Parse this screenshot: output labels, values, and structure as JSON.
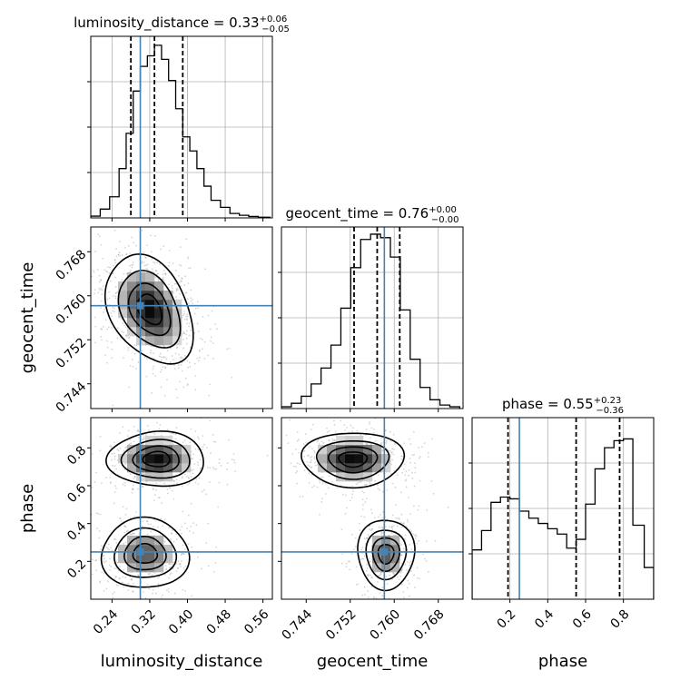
{
  "chart_data": {
    "type": "corner",
    "parameters": [
      {
        "name": "luminosity_distance",
        "label": "luminosity_distance",
        "title": {
          "text": "luminosity_distance = 0.33",
          "plus": "+0.06",
          "minus": "−0.05"
        },
        "range": [
          0.195,
          0.58
        ],
        "ticks": [
          0.24,
          0.32,
          0.4,
          0.48,
          0.56
        ],
        "tick_labels": [
          "0.24",
          "0.32",
          "0.40",
          "0.48",
          "0.56"
        ],
        "truth": 0.3,
        "quantiles": [
          0.28,
          0.33,
          0.39
        ],
        "hist_edges": [
          0.195,
          0.215,
          0.235,
          0.255,
          0.27,
          0.285,
          0.3,
          0.315,
          0.33,
          0.345,
          0.36,
          0.375,
          0.39,
          0.405,
          0.42,
          0.435,
          0.45,
          0.47,
          0.49,
          0.51,
          0.53,
          0.55,
          0.575
        ],
        "hist_values": [
          0.01,
          0.05,
          0.12,
          0.28,
          0.48,
          0.72,
          0.86,
          0.92,
          0.98,
          0.9,
          0.78,
          0.62,
          0.46,
          0.38,
          0.28,
          0.18,
          0.1,
          0.06,
          0.025,
          0.015,
          0.008,
          0.004
        ],
        "hist_ylim": [
          0,
          1.0
        ]
      },
      {
        "name": "geocent_time",
        "label": "geocent_time",
        "title": {
          "text": "geocent_time = 0.76",
          "plus": "+0.00",
          "minus": "−0.00"
        },
        "range": [
          0.7395,
          0.7725
        ],
        "ticks": [
          0.744,
          0.752,
          0.76,
          0.768
        ],
        "tick_labels": [
          "0.744",
          "0.752",
          "0.760",
          "0.768"
        ],
        "truth": 0.7582,
        "quantiles": [
          0.7527,
          0.7569,
          0.761
        ],
        "hist_edges": [
          0.7395,
          0.7413,
          0.7431,
          0.7449,
          0.7467,
          0.7485,
          0.7503,
          0.7521,
          0.7539,
          0.7557,
          0.7575,
          0.7593,
          0.7611,
          0.7629,
          0.7647,
          0.7665,
          0.7683,
          0.7701,
          0.7719
        ],
        "hist_values": [
          0.01,
          0.03,
          0.07,
          0.14,
          0.23,
          0.36,
          0.57,
          0.8,
          0.96,
          0.99,
          0.97,
          0.86,
          0.56,
          0.28,
          0.12,
          0.05,
          0.02,
          0.01
        ],
        "hist_ylim": [
          0,
          1.0
        ]
      },
      {
        "name": "phase",
        "label": "phase",
        "title": {
          "text": "phase = 0.55",
          "plus": "+0.23",
          "minus": "−0.36"
        },
        "range": [
          0.0,
          0.96
        ],
        "ticks": [
          0.2,
          0.4,
          0.6,
          0.8
        ],
        "tick_labels": [
          "0.2",
          "0.4",
          "0.6",
          "0.8"
        ],
        "truth": 0.25,
        "quantiles": [
          0.19,
          0.55,
          0.78
        ],
        "hist_edges": [
          0.0,
          0.05,
          0.1,
          0.15,
          0.2,
          0.25,
          0.3,
          0.35,
          0.4,
          0.45,
          0.5,
          0.55,
          0.6,
          0.65,
          0.7,
          0.75,
          0.8,
          0.85,
          0.91,
          0.96
        ],
        "hist_values": [
          0.28,
          0.39,
          0.55,
          0.58,
          0.57,
          0.5,
          0.46,
          0.43,
          0.4,
          0.37,
          0.29,
          0.34,
          0.54,
          0.74,
          0.86,
          0.9,
          0.91,
          0.42,
          0.18
        ],
        "hist_ylim": [
          0,
          1.0
        ]
      }
    ],
    "density_modes": {
      "luminosity_distance_vs_geocent_time": [
        {
          "cx": 0.32,
          "cy": 0.7575,
          "sx": 0.045,
          "sy": 0.0048,
          "rho": -0.35,
          "w": 1.0
        }
      ],
      "luminosity_distance_vs_phase": [
        {
          "cx": 0.335,
          "cy": 0.74,
          "sx": 0.05,
          "sy": 0.07,
          "rho": 0.0,
          "w": 1.0
        },
        {
          "cx": 0.31,
          "cy": 0.24,
          "sx": 0.045,
          "sy": 0.09,
          "rho": 0.0,
          "w": 0.75
        }
      ],
      "geocent_time_vs_phase": [
        {
          "cx": 0.7525,
          "cy": 0.74,
          "sx": 0.0045,
          "sy": 0.07,
          "rho": 0.0,
          "w": 1.0
        },
        {
          "cx": 0.7585,
          "cy": 0.24,
          "sx": 0.0025,
          "sy": 0.09,
          "rho": 0.0,
          "w": 0.75
        }
      ]
    },
    "colors": {
      "hist_line": "#000000",
      "truth": "#4682b4",
      "quantile": "#000000",
      "grid": "#b0b0b0",
      "density_max": "#000000"
    }
  }
}
